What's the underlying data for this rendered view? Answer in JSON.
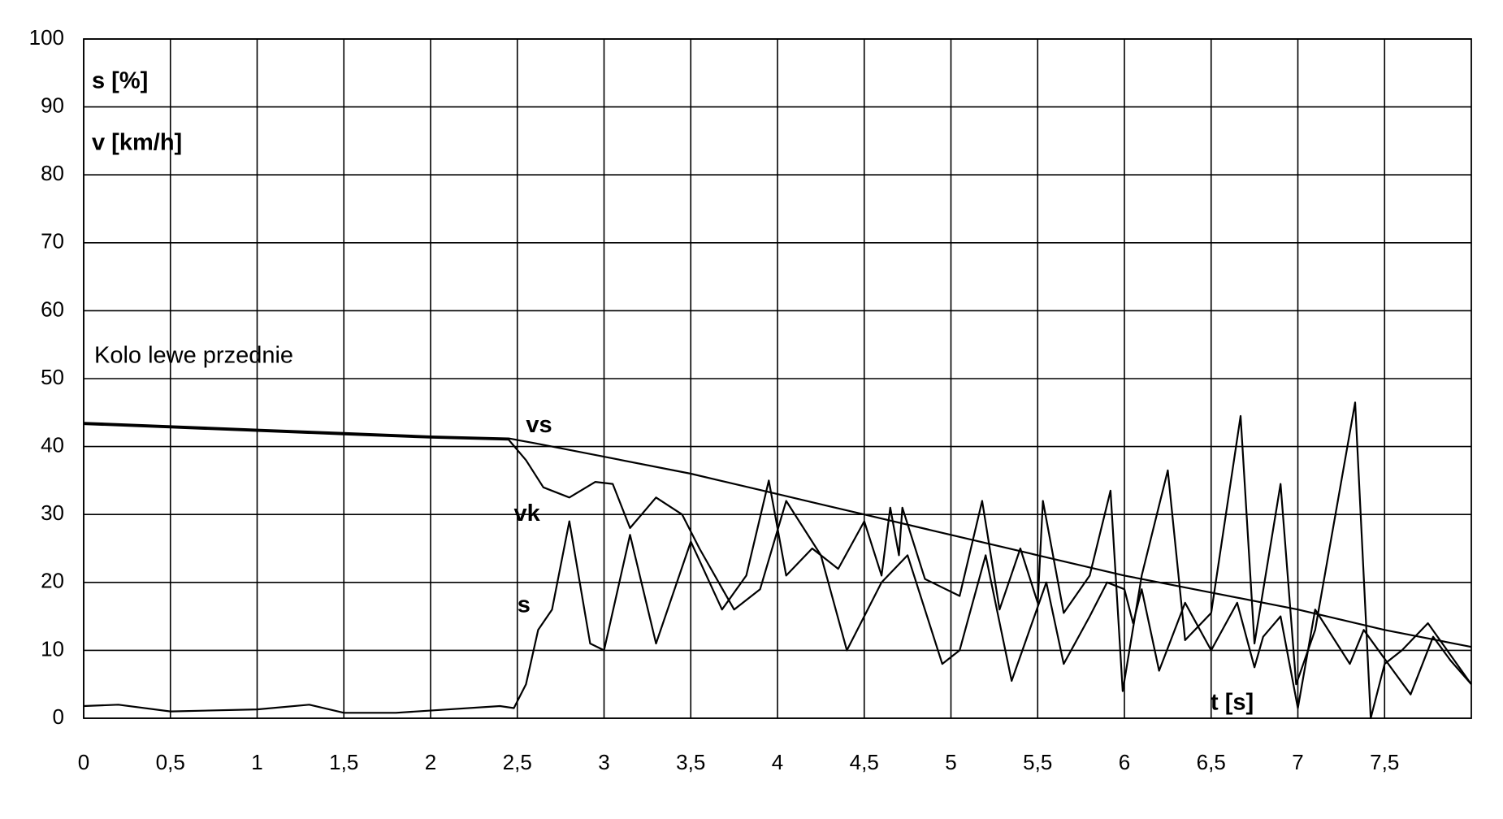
{
  "chart_data": {
    "type": "line",
    "annotations": [
      "s [%]",
      "v [km/h]",
      "Kolo lewe przednie",
      "t [s]"
    ],
    "xlim": [
      0,
      8
    ],
    "ylim": [
      0,
      100
    ],
    "xticks": [
      0,
      {
        "value": 0.5,
        "label": "0,5"
      },
      1,
      {
        "value": 1.5,
        "label": "1,5"
      },
      2,
      {
        "value": 2.5,
        "label": "2,5"
      },
      3,
      {
        "value": 3.5,
        "label": "3,5"
      },
      4,
      {
        "value": 4.5,
        "label": "4,5"
      },
      5,
      {
        "value": 5.5,
        "label": "5,5"
      },
      6,
      {
        "value": 6.5,
        "label": "6,5"
      },
      7,
      {
        "value": 7.5,
        "label": "7,5"
      }
    ],
    "yticks": [
      0,
      10,
      20,
      30,
      40,
      50,
      60,
      70,
      80,
      90,
      100
    ],
    "grid": true,
    "series": [
      {
        "name": "vs",
        "color": "#000000",
        "x": [
          0,
          0.5,
          1,
          1.5,
          2,
          2.45,
          2.6,
          3,
          3.5,
          4,
          4.5,
          5,
          5.5,
          6,
          6.5,
          7,
          7.5,
          8
        ],
        "values": [
          43.5,
          43,
          42.5,
          42,
          41.5,
          41.2,
          40.5,
          38.5,
          36,
          33,
          30,
          27,
          24,
          21,
          18.5,
          16,
          13,
          10.5
        ]
      },
      {
        "name": "vk",
        "color": "#000000",
        "x": [
          0,
          0.5,
          1,
          1.5,
          2,
          2.45,
          2.55,
          2.65,
          2.8,
          2.95,
          3.05,
          3.15,
          3.3,
          3.45,
          3.55,
          3.75,
          3.9,
          4.05,
          4.25,
          4.4,
          4.6,
          4.75,
          4.95,
          5.05,
          5.2,
          5.35,
          5.55,
          5.65,
          5.8,
          5.9,
          6,
          6.05,
          6.1,
          6.2,
          6.35,
          6.5,
          6.65,
          6.75,
          6.8,
          6.9,
          7,
          7.1,
          7.3,
          7.38,
          7.55,
          7.65,
          7.78,
          7.88,
          8
        ],
        "values": [
          43.3,
          42.8,
          42.3,
          41.8,
          41.3,
          41,
          38,
          34,
          32.5,
          34.8,
          34.5,
          28,
          32.5,
          30,
          25,
          16,
          19,
          32,
          24,
          10,
          20,
          24,
          8,
          10,
          24,
          5.5,
          20,
          8,
          15,
          20,
          19,
          14,
          19,
          7,
          17,
          10,
          17,
          7.5,
          12,
          15,
          1.5,
          16,
          8,
          13,
          7,
          3.5,
          12,
          8.5,
          5
        ]
      },
      {
        "name": "s",
        "color": "#000000",
        "x": [
          0,
          0.2,
          0.5,
          1,
          1.3,
          1.5,
          1.8,
          2.4,
          2.48,
          2.55,
          2.62,
          2.7,
          2.8,
          2.92,
          3,
          3.15,
          3.3,
          3.5,
          3.68,
          3.82,
          3.95,
          4.05,
          4.2,
          4.35,
          4.5,
          4.6,
          4.65,
          4.7,
          4.72,
          4.85,
          5.05,
          5.18,
          5.28,
          5.4,
          5.5,
          5.53,
          5.65,
          5.8,
          5.92,
          5.99,
          6.1,
          6.25,
          6.35,
          6.5,
          6.67,
          6.75,
          6.9,
          6.99,
          7.1,
          7.33,
          7.42,
          7.5,
          7.6,
          7.75,
          8
        ],
        "values": [
          1.8,
          2,
          1,
          1.3,
          2,
          0.8,
          0.8,
          1.8,
          1.5,
          5,
          13,
          16,
          29,
          11,
          10,
          27,
          11,
          26,
          16,
          21,
          35,
          21,
          25,
          22,
          29,
          21,
          31,
          24,
          31,
          20.5,
          18,
          32,
          16,
          25,
          17,
          32,
          15.5,
          21,
          33.5,
          4,
          21,
          36.5,
          11.5,
          15.5,
          44.5,
          11,
          34.5,
          5,
          13,
          46.5,
          0,
          8,
          10,
          14,
          5
        ]
      }
    ]
  }
}
